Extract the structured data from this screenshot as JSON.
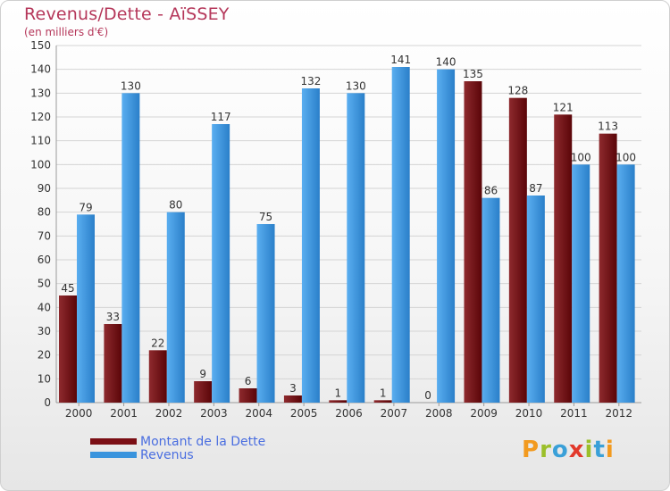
{
  "header": {
    "title": "Revenus/Dette - AïSSEY",
    "subtitle": "(en milliers d'€)"
  },
  "colors": {
    "dette": "#7b0f15",
    "revenus": "#3a94dd",
    "grid": "#d4d4d4",
    "axis_text": "#333333",
    "title": "#b5375a"
  },
  "logo": {
    "text": "Proxiti",
    "letters": [
      {
        "ch": "P",
        "color": "#f29a1f"
      },
      {
        "ch": "r",
        "color": "#9bbf2a"
      },
      {
        "ch": "o",
        "color": "#3aa0d8"
      },
      {
        "ch": "x",
        "color": "#e2392b"
      },
      {
        "ch": "i",
        "color": "#9bbf2a"
      },
      {
        "ch": "t",
        "color": "#3aa0d8"
      },
      {
        "ch": "i",
        "color": "#f29a1f"
      }
    ]
  },
  "chart_data": {
    "type": "bar",
    "title": "Revenus/Dette - AïSSEY",
    "subtitle": "(en milliers d'€)",
    "categories": [
      "2000",
      "2001",
      "2002",
      "2003",
      "2004",
      "2005",
      "2006",
      "2007",
      "2008",
      "2009",
      "2010",
      "2011",
      "2012"
    ],
    "series": [
      {
        "name": "Montant de la Dette",
        "values": [
          45,
          33,
          22,
          9,
          6,
          3,
          1,
          1,
          0,
          135,
          128,
          121,
          113
        ]
      },
      {
        "name": "Revenus",
        "values": [
          79,
          130,
          80,
          117,
          75,
          132,
          130,
          141,
          140,
          86,
          87,
          100,
          100
        ]
      }
    ],
    "ylim": [
      0,
      150
    ],
    "yticks": [
      0,
      10,
      20,
      30,
      40,
      50,
      60,
      70,
      80,
      90,
      100,
      110,
      120,
      130,
      140,
      150
    ],
    "grid": true,
    "legend_position": "bottom-left"
  }
}
